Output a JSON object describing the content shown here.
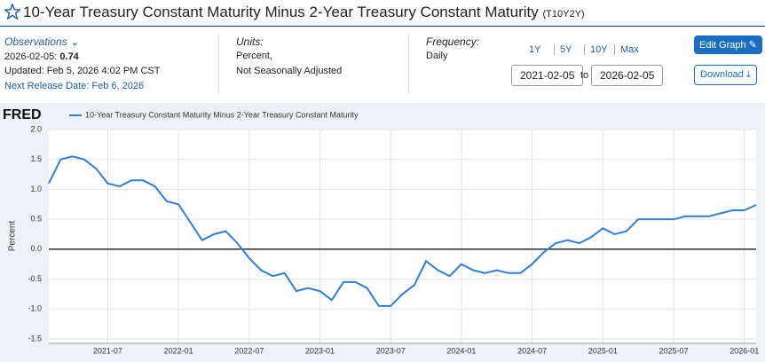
{
  "header": {
    "title": "10-Year Treasury Constant Maturity Minus 2-Year Treasury Constant Maturity",
    "series_id": "(T10Y2Y)"
  },
  "info": {
    "observations_label": "Observations",
    "observation_date": "2026-02-05:",
    "observation_value": "0.74",
    "updated": "Updated: Feb 5, 2026 4:02 PM CST",
    "next_release": "Next Release Date: Feb 6, 2026",
    "units_label": "Units:",
    "units_line1": "Percent,",
    "units_line2": "Not Seasonally Adjusted",
    "frequency_label": "Frequency:",
    "frequency": "Daily",
    "ranges": [
      "1Y",
      "5Y",
      "10Y",
      "Max"
    ],
    "start_date": "2021-02-05",
    "to": "to",
    "end_date": "2026-02-05",
    "edit_button": "Edit Graph",
    "download_button": "Download"
  },
  "chart_data": {
    "type": "line",
    "brand": "FRED",
    "y_label": "Percent",
    "grid": true,
    "zero_line": true,
    "x": [
      "2021-02",
      "2021-03",
      "2021-04",
      "2021-05",
      "2021-06",
      "2021-07",
      "2021-08",
      "2021-09",
      "2021-10",
      "2021-11",
      "2021-12",
      "2022-01",
      "2022-02",
      "2022-03",
      "2022-04",
      "2022-05",
      "2022-06",
      "2022-07",
      "2022-08",
      "2022-09",
      "2022-10",
      "2022-11",
      "2022-12",
      "2023-01",
      "2023-02",
      "2023-03",
      "2023-04",
      "2023-05",
      "2023-06",
      "2023-07",
      "2023-08",
      "2023-09",
      "2023-10",
      "2023-11",
      "2023-12",
      "2024-01",
      "2024-02",
      "2024-03",
      "2024-04",
      "2024-05",
      "2024-06",
      "2024-07",
      "2024-08",
      "2024-09",
      "2024-10",
      "2024-11",
      "2024-12",
      "2025-01",
      "2025-02",
      "2025-03",
      "2025-04",
      "2025-05",
      "2025-06",
      "2025-07",
      "2025-08",
      "2025-09",
      "2025-10",
      "2025-11",
      "2025-12",
      "2026-01",
      "2026-02"
    ],
    "series": [
      {
        "name": "10-Year Treasury Constant Maturity Minus 2-Year Treasury Constant Maturity",
        "color": "#2f7ed8",
        "values": [
          1.1,
          1.5,
          1.55,
          1.5,
          1.35,
          1.1,
          1.05,
          1.15,
          1.15,
          1.05,
          0.8,
          0.75,
          0.45,
          0.15,
          0.25,
          0.3,
          0.1,
          -0.15,
          -0.35,
          -0.45,
          -0.4,
          -0.7,
          -0.65,
          -0.7,
          -0.85,
          -0.55,
          -0.55,
          -0.65,
          -0.95,
          -0.95,
          -0.75,
          -0.6,
          -0.2,
          -0.35,
          -0.45,
          -0.25,
          -0.35,
          -0.4,
          -0.35,
          -0.4,
          -0.4,
          -0.25,
          -0.05,
          0.1,
          0.15,
          0.1,
          0.2,
          0.35,
          0.25,
          0.3,
          0.5,
          0.5,
          0.5,
          0.5,
          0.55,
          0.55,
          0.55,
          0.6,
          0.65,
          0.65,
          0.74
        ]
      }
    ],
    "xlim": [
      "2021-02",
      "2026-02"
    ],
    "xticks": [
      "2021-07",
      "2022-01",
      "2022-07",
      "2023-01",
      "2023-07",
      "2024-01",
      "2024-07",
      "2025-01",
      "2025-07",
      "2026-01"
    ],
    "ylim": [
      -1.5,
      2.0
    ],
    "yticks": [
      {
        "value": 2.0,
        "label": "2.0"
      },
      1.5,
      {
        "value": 1.0,
        "label": "1.0"
      },
      0.5,
      {
        "value": 0.0,
        "label": "0.0"
      },
      -0.5,
      {
        "value": -1.0,
        "label": "-1.0"
      },
      -1.5
    ]
  }
}
